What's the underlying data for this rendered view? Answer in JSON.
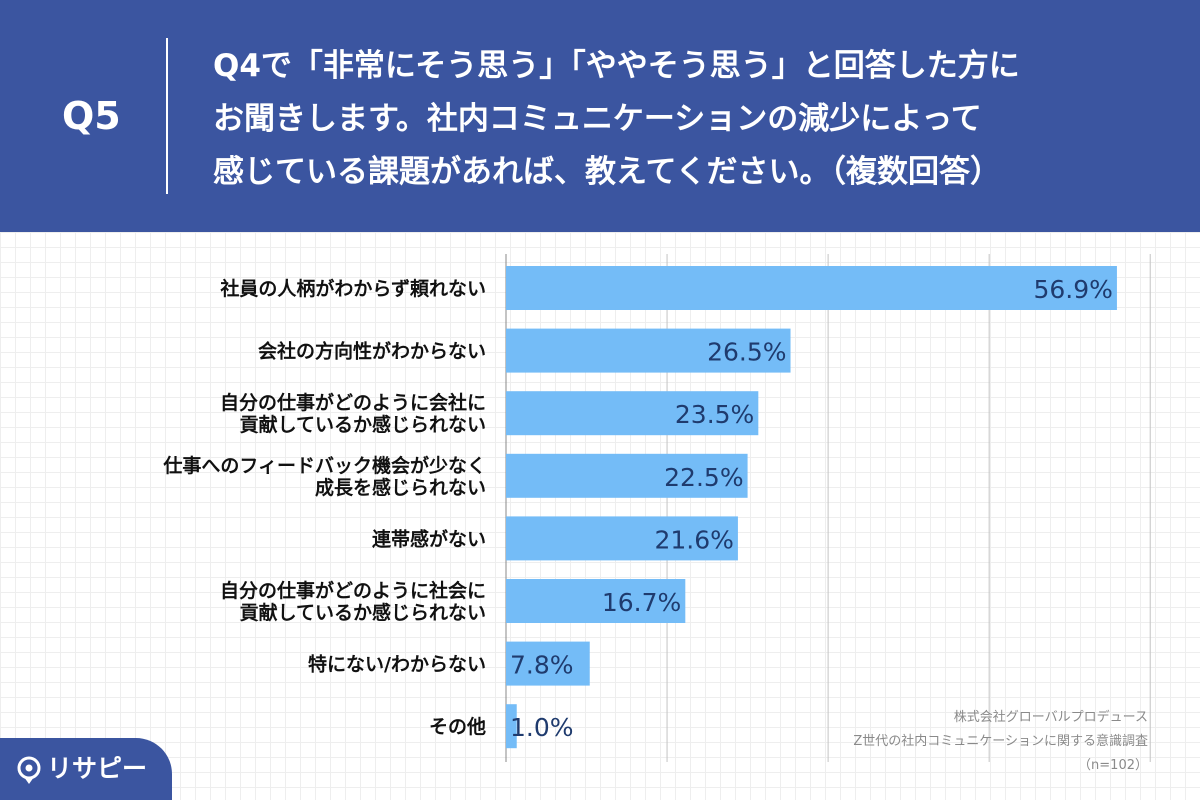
{
  "header": {
    "q_label": "Q5",
    "question_lines": [
      "Q4で「非常にそう思う」「ややそう思う」と回答した方に",
      "お聞きします。社内コミュニケーションの減少によって",
      "感じている課題があれば、教えてください。（複数回答）"
    ]
  },
  "chart_data": {
    "type": "bar",
    "orientation": "horizontal",
    "categories": [
      [
        "社員の人柄がわからず頼れない"
      ],
      [
        "会社の方向性がわからない"
      ],
      [
        "自分の仕事がどのように会社に",
        "貢献しているか感じられない"
      ],
      [
        "仕事へのフィードバック機会が少なく",
        "成長を感じられない"
      ],
      [
        "連帯感がない"
      ],
      [
        "自分の仕事がどのように社会に",
        "貢献しているか感じられない"
      ],
      [
        "特にない/わからない"
      ],
      [
        "その他"
      ]
    ],
    "values": [
      56.9,
      26.5,
      23.5,
      22.5,
      21.6,
      16.7,
      7.8,
      1.0
    ],
    "value_labels": [
      "56.9%",
      "26.5%",
      "23.5%",
      "22.5%",
      "21.6%",
      "16.7%",
      "7.8%",
      "1.0%"
    ],
    "xlim": [
      0,
      60
    ],
    "grid": true,
    "bar_color": "#74bcf7",
    "value_label_color": "#1f3b6e"
  },
  "source": {
    "lines": [
      "株式会社グローバルプロデュース",
      "Z世代の社内コミュニケーションに関する意識調査",
      "（n=102）"
    ]
  },
  "logo": {
    "text": "リサピー"
  },
  "colors": {
    "background": "#3b55a0",
    "panel": "#ffffff",
    "text_dark": "#111111"
  }
}
